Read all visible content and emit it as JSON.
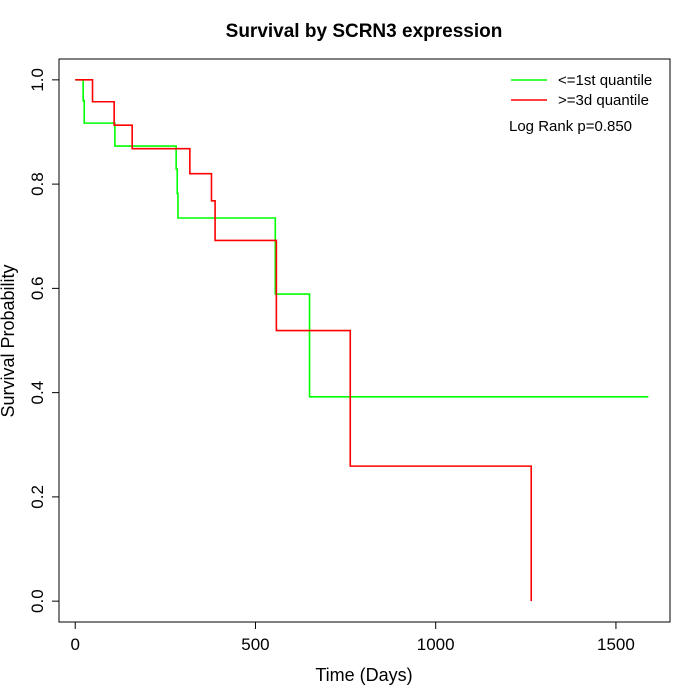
{
  "chart_data": {
    "type": "line",
    "title": "Survival by SCRN3 expression",
    "xlabel": "Time (Days)",
    "ylabel": "Survival Probability",
    "xlim": [
      -45,
      1650
    ],
    "ylim": [
      -0.04,
      1.04
    ],
    "x_ticks": [
      0,
      500,
      1000,
      1500
    ],
    "y_ticks": [
      0.0,
      0.2,
      0.4,
      0.6,
      0.8,
      1.0
    ],
    "x_tick_labels": [
      "0",
      "500",
      "1000",
      "1500"
    ],
    "y_tick_labels": [
      "0.0",
      "0.2",
      "0.4",
      "0.6",
      "0.8",
      "1.0"
    ],
    "grid": false,
    "legend_position": "top-right",
    "annotation": "Log Rank p=0.850",
    "series": [
      {
        "name": "<=1st quantile",
        "color": "#00ff00",
        "step_times": [
          0,
          22,
          25,
          110,
          280,
          283,
          285,
          300,
          555,
          650,
          1590
        ],
        "step_values": [
          1.0,
          0.96,
          0.917,
          0.873,
          0.829,
          0.782,
          0.735,
          0.735,
          0.589,
          0.392,
          0.392
        ]
      },
      {
        "name": ">=3d quantile",
        "color": "#ff0000",
        "step_times": [
          0,
          48,
          108,
          158,
          318,
          378,
          388,
          555,
          558,
          763,
          1265
        ],
        "step_values": [
          1.0,
          0.958,
          0.913,
          0.868,
          0.82,
          0.768,
          0.692,
          0.692,
          0.519,
          0.259,
          0.0
        ]
      }
    ]
  }
}
